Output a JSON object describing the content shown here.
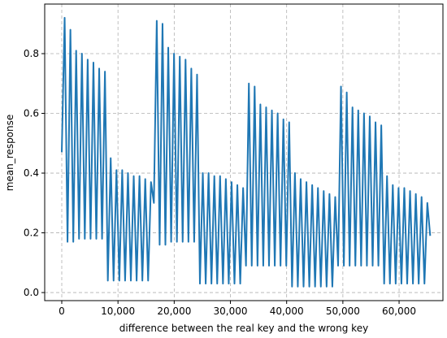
{
  "chart_data": {
    "type": "line",
    "xlabel": "difference between the real key and the wrong key",
    "ylabel": "mean_response",
    "x": [
      0,
      512,
      1024,
      1536,
      2048,
      2560,
      3072,
      3584,
      4096,
      4608,
      5120,
      5632,
      6144,
      6656,
      7168,
      7680,
      8192,
      8704,
      9216,
      9728,
      10240,
      10752,
      11264,
      11776,
      12288,
      12800,
      13312,
      13824,
      14336,
      14848,
      15360,
      15872,
      16384,
      16896,
      17408,
      17920,
      18432,
      18944,
      19456,
      19968,
      20480,
      20992,
      21504,
      22016,
      22528,
      23040,
      23552,
      24064,
      24576,
      25088,
      25600,
      26112,
      26624,
      27136,
      27648,
      28160,
      28672,
      29184,
      29696,
      30208,
      30720,
      31232,
      31744,
      32256,
      32768,
      33280,
      33792,
      34304,
      34816,
      35328,
      35840,
      36352,
      36864,
      37376,
      37888,
      38400,
      38912,
      39424,
      39936,
      40448,
      40960,
      41472,
      41984,
      42496,
      43008,
      43520,
      44032,
      44544,
      45056,
      45568,
      46080,
      46592,
      47104,
      47616,
      48128,
      48640,
      49152,
      49664,
      50176,
      50688,
      51200,
      51712,
      52224,
      52736,
      53248,
      53760,
      54272,
      54784,
      55296,
      55808,
      56320,
      56832,
      57344,
      57856,
      58368,
      58880,
      59392,
      59904,
      60416,
      60928,
      61440,
      61952,
      62464,
      62976,
      63488,
      64000,
      64512,
      65024,
      65535
    ],
    "series": [
      {
        "color": "#1f77b4",
        "values": [
          0.47,
          0.92,
          0.17,
          0.88,
          0.17,
          0.81,
          0.18,
          0.8,
          0.18,
          0.78,
          0.18,
          0.77,
          0.18,
          0.75,
          0.18,
          0.74,
          0.04,
          0.45,
          0.04,
          0.41,
          0.04,
          0.41,
          0.04,
          0.4,
          0.04,
          0.39,
          0.04,
          0.39,
          0.04,
          0.38,
          0.04,
          0.37,
          0.3,
          0.91,
          0.16,
          0.9,
          0.16,
          0.82,
          0.17,
          0.8,
          0.17,
          0.79,
          0.17,
          0.78,
          0.17,
          0.75,
          0.17,
          0.73,
          0.03,
          0.4,
          0.03,
          0.4,
          0.03,
          0.39,
          0.03,
          0.39,
          0.03,
          0.38,
          0.03,
          0.37,
          0.03,
          0.36,
          0.03,
          0.35,
          0.09,
          0.7,
          0.09,
          0.69,
          0.09,
          0.63,
          0.09,
          0.62,
          0.09,
          0.61,
          0.09,
          0.6,
          0.09,
          0.58,
          0.09,
          0.57,
          0.02,
          0.4,
          0.02,
          0.38,
          0.02,
          0.37,
          0.02,
          0.36,
          0.02,
          0.35,
          0.02,
          0.34,
          0.02,
          0.33,
          0.02,
          0.32,
          0.09,
          0.69,
          0.09,
          0.67,
          0.09,
          0.62,
          0.09,
          0.61,
          0.09,
          0.6,
          0.09,
          0.59,
          0.09,
          0.57,
          0.09,
          0.56,
          0.03,
          0.39,
          0.03,
          0.36,
          0.03,
          0.35,
          0.03,
          0.35,
          0.03,
          0.34,
          0.03,
          0.33,
          0.03,
          0.32,
          0.03,
          0.3,
          0.19
        ]
      }
    ],
    "xlim": [
      -3036,
      67800
    ],
    "ylim": [
      -0.027,
      0.966
    ],
    "xticks": [
      0,
      {
        "value": 10000,
        "label": "10,000"
      },
      {
        "value": 20000,
        "label": "20,000"
      },
      {
        "value": 30000,
        "label": "30,000"
      },
      {
        "value": 40000,
        "label": "40,000"
      },
      {
        "value": 50000,
        "label": "50,000"
      },
      {
        "value": 60000,
        "label": "60,000"
      }
    ],
    "yticks": [
      {
        "value": 0,
        "label": "0.0"
      },
      {
        "value": 0.2,
        "label": "0.2"
      },
      {
        "value": 0.4,
        "label": "0.4"
      },
      {
        "value": 0.6,
        "label": "0.6"
      },
      {
        "value": 0.8,
        "label": "0.8"
      }
    ],
    "grid": true
  }
}
